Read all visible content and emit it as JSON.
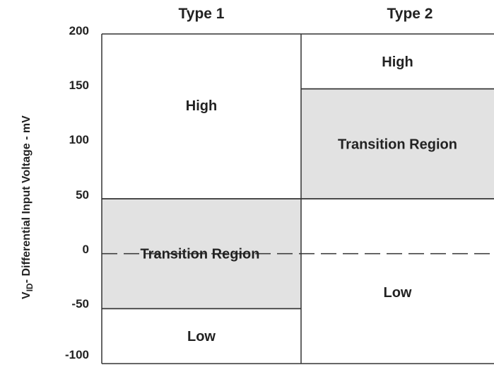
{
  "chart_data": {
    "type": "table",
    "columns": [
      "Type 1",
      "Type 2"
    ],
    "y_axis": {
      "label_main": "V",
      "label_sub": "ID",
      "label_rest": "- Differential Input Voltage - mV",
      "ticks": [
        "200",
        "150",
        "100",
        "50",
        "0",
        "-50",
        "-100"
      ],
      "tick_values": [
        200,
        150,
        100,
        50,
        0,
        -50,
        -100
      ],
      "range": [
        -100,
        200
      ]
    },
    "regions": [
      {
        "column": "Type 1",
        "label": "High",
        "from": 50,
        "to": 200,
        "shaded": false
      },
      {
        "column": "Type 1",
        "label": "Transition Region",
        "from": -50,
        "to": 50,
        "shaded": true
      },
      {
        "column": "Type 1",
        "label": "Low",
        "from": -100,
        "to": -50,
        "shaded": false
      },
      {
        "column": "Type 2",
        "label": "High",
        "from": 150,
        "to": 200,
        "shaded": false
      },
      {
        "column": "Type 2",
        "label": "Transition Region",
        "from": 50,
        "to": 150,
        "shaded": true
      },
      {
        "column": "Type 2",
        "label": "Low",
        "from": -100,
        "to": 50,
        "shaded": false
      }
    ],
    "zero_line": {
      "value": 0,
      "style": "dashed"
    },
    "colors": {
      "shaded": "#e2e2e2",
      "line": "#333333",
      "text": "#222222"
    }
  }
}
